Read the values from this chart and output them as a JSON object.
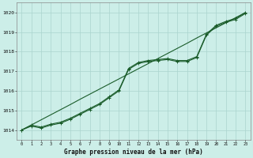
{
  "title": "Graphe pression niveau de la mer (hPa)",
  "bg_color": "#cceee8",
  "grid_color": "#aad4ce",
  "line_color": "#1a5c2a",
  "x_ticks": [
    0,
    1,
    2,
    3,
    4,
    5,
    6,
    7,
    8,
    9,
    10,
    11,
    12,
    13,
    14,
    15,
    16,
    17,
    18,
    19,
    20,
    21,
    22,
    23
  ],
  "ylim": [
    1013.5,
    1020.5
  ],
  "xlim": [
    -0.5,
    23.5
  ],
  "yticks": [
    1014,
    1015,
    1016,
    1017,
    1018,
    1019,
    1020
  ],
  "series_straight": [
    1014.0,
    1014.26,
    1014.52,
    1014.78,
    1015.04,
    1015.3,
    1015.57,
    1015.83,
    1016.09,
    1016.35,
    1016.61,
    1016.87,
    1017.13,
    1017.39,
    1017.65,
    1017.91,
    1018.17,
    1018.43,
    1018.7,
    1018.96,
    1019.22,
    1019.48,
    1019.74,
    1020.0
  ],
  "series_main": [
    1014.0,
    1014.2,
    1014.1,
    1014.25,
    1014.35,
    1014.55,
    1014.8,
    1015.05,
    1015.3,
    1015.65,
    1016.0,
    1017.1,
    1017.4,
    1017.5,
    1017.55,
    1017.6,
    1017.5,
    1017.5,
    1017.7,
    1018.85,
    1019.3,
    1019.5,
    1019.65,
    1019.95
  ],
  "series_upper": [
    1014.0,
    1014.25,
    1014.15,
    1014.3,
    1014.4,
    1014.6,
    1014.85,
    1015.1,
    1015.35,
    1015.7,
    1016.05,
    1017.15,
    1017.45,
    1017.55,
    1017.6,
    1017.65,
    1017.55,
    1017.55,
    1017.75,
    1018.9,
    1019.35,
    1019.55,
    1019.7,
    1020.0
  ]
}
